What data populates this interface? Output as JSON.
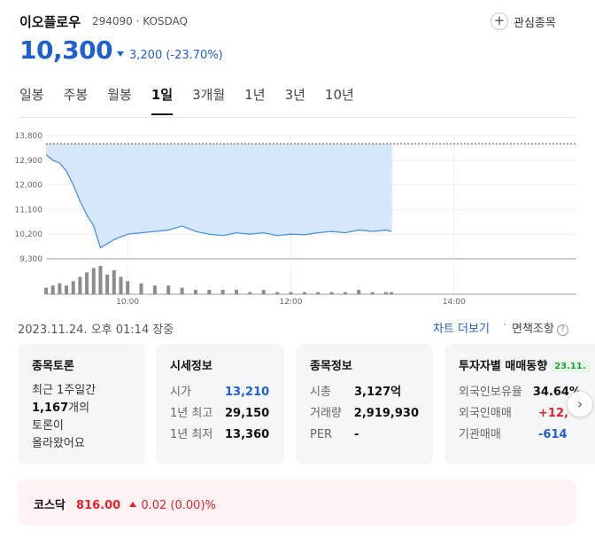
{
  "stock": {
    "name": "이오플로우",
    "code_market": "294090 · KOSDAQ",
    "price": "10,300",
    "change": "3,200 (-23.70%)",
    "favorite_label": "관심종목",
    "favorite_icon": "plus-icon",
    "more_icon": "kebab-menu-icon"
  },
  "tabs": [
    "일봉",
    "주봉",
    "월봉",
    "1일",
    "3개월",
    "1년",
    "3년",
    "10년"
  ],
  "active_tab": "1일",
  "chart_data": {
    "type": "area",
    "y_ticks": [
      "13,800",
      "12,900",
      "12,000",
      "11,100",
      "10,200",
      "9,300"
    ],
    "x_ticks": [
      "10:00",
      "12:00",
      "14:00"
    ],
    "prev_close": 13500,
    "ylim": [
      9300,
      13800
    ],
    "x_range": [
      "09:00",
      "15:30"
    ],
    "x": [
      "09:00",
      "09:05",
      "09:10",
      "09:15",
      "09:20",
      "09:25",
      "09:30",
      "09:35",
      "09:40",
      "09:45",
      "09:50",
      "09:55",
      "10:00",
      "10:10",
      "10:20",
      "10:30",
      "10:40",
      "10:50",
      "11:00",
      "11:10",
      "11:20",
      "11:30",
      "11:40",
      "11:50",
      "12:00",
      "12:10",
      "12:20",
      "12:30",
      "12:40",
      "12:50",
      "13:00",
      "13:10",
      "13:14"
    ],
    "values": [
      13100,
      12900,
      12800,
      12500,
      12000,
      11400,
      10900,
      10500,
      9700,
      9850,
      10000,
      10100,
      10200,
      10250,
      10300,
      10350,
      10500,
      10300,
      10200,
      10150,
      10250,
      10200,
      10250,
      10150,
      10200,
      10180,
      10250,
      10300,
      10250,
      10350,
      10300,
      10350,
      10300
    ],
    "volume": [
      3,
      4,
      5,
      4,
      6,
      8,
      10,
      12,
      13,
      9,
      11,
      8,
      6,
      5,
      4,
      4,
      3,
      2,
      2,
      2,
      2,
      1,
      2,
      1,
      1,
      1,
      1,
      1,
      1,
      2,
      1,
      1,
      1
    ],
    "colors": {
      "line": "#4a90e2",
      "fill": "#d6e7fa",
      "volume": "#8c8c8c",
      "prev_close": "#555555"
    }
  },
  "status": {
    "timestamp": "2023.11.24. 오후 01:14 장중",
    "chart_more": "차트 더보기",
    "separator": "·",
    "disclaimer": "면책조항",
    "info_icon": "info-icon"
  },
  "cards": {
    "discussion": {
      "title": "종목토론",
      "line1": "최근 1주일간",
      "count": "1,167",
      "count_suffix": "개의",
      "line3": "토론이",
      "line4": "올라왔어요"
    },
    "quote": {
      "title": "시세정보",
      "rows": [
        {
          "k": "시가",
          "v": "13,210"
        },
        {
          "k": "1년 최고",
          "v": "29,150"
        },
        {
          "k": "1년 최저",
          "v": "13,360"
        }
      ]
    },
    "info": {
      "title": "종목정보",
      "rows": [
        {
          "k": "시총",
          "v": "3,127억"
        },
        {
          "k": "거래량",
          "v": "2,919,930"
        },
        {
          "k": "PER",
          "v": "-"
        }
      ]
    },
    "investor": {
      "title": "투자자별 매매동향",
      "badge": "23.11.",
      "rows": [
        {
          "k": "외국인보유율",
          "v": "34.64%"
        },
        {
          "k": "외국인매매",
          "v": "+12,"
        },
        {
          "k": "기관매매",
          "v": "-614"
        }
      ]
    },
    "next_icon": "chevron-right-icon"
  },
  "index": {
    "name": "코스닥",
    "value": "816.00",
    "change": "0.02 (0.00)%"
  }
}
